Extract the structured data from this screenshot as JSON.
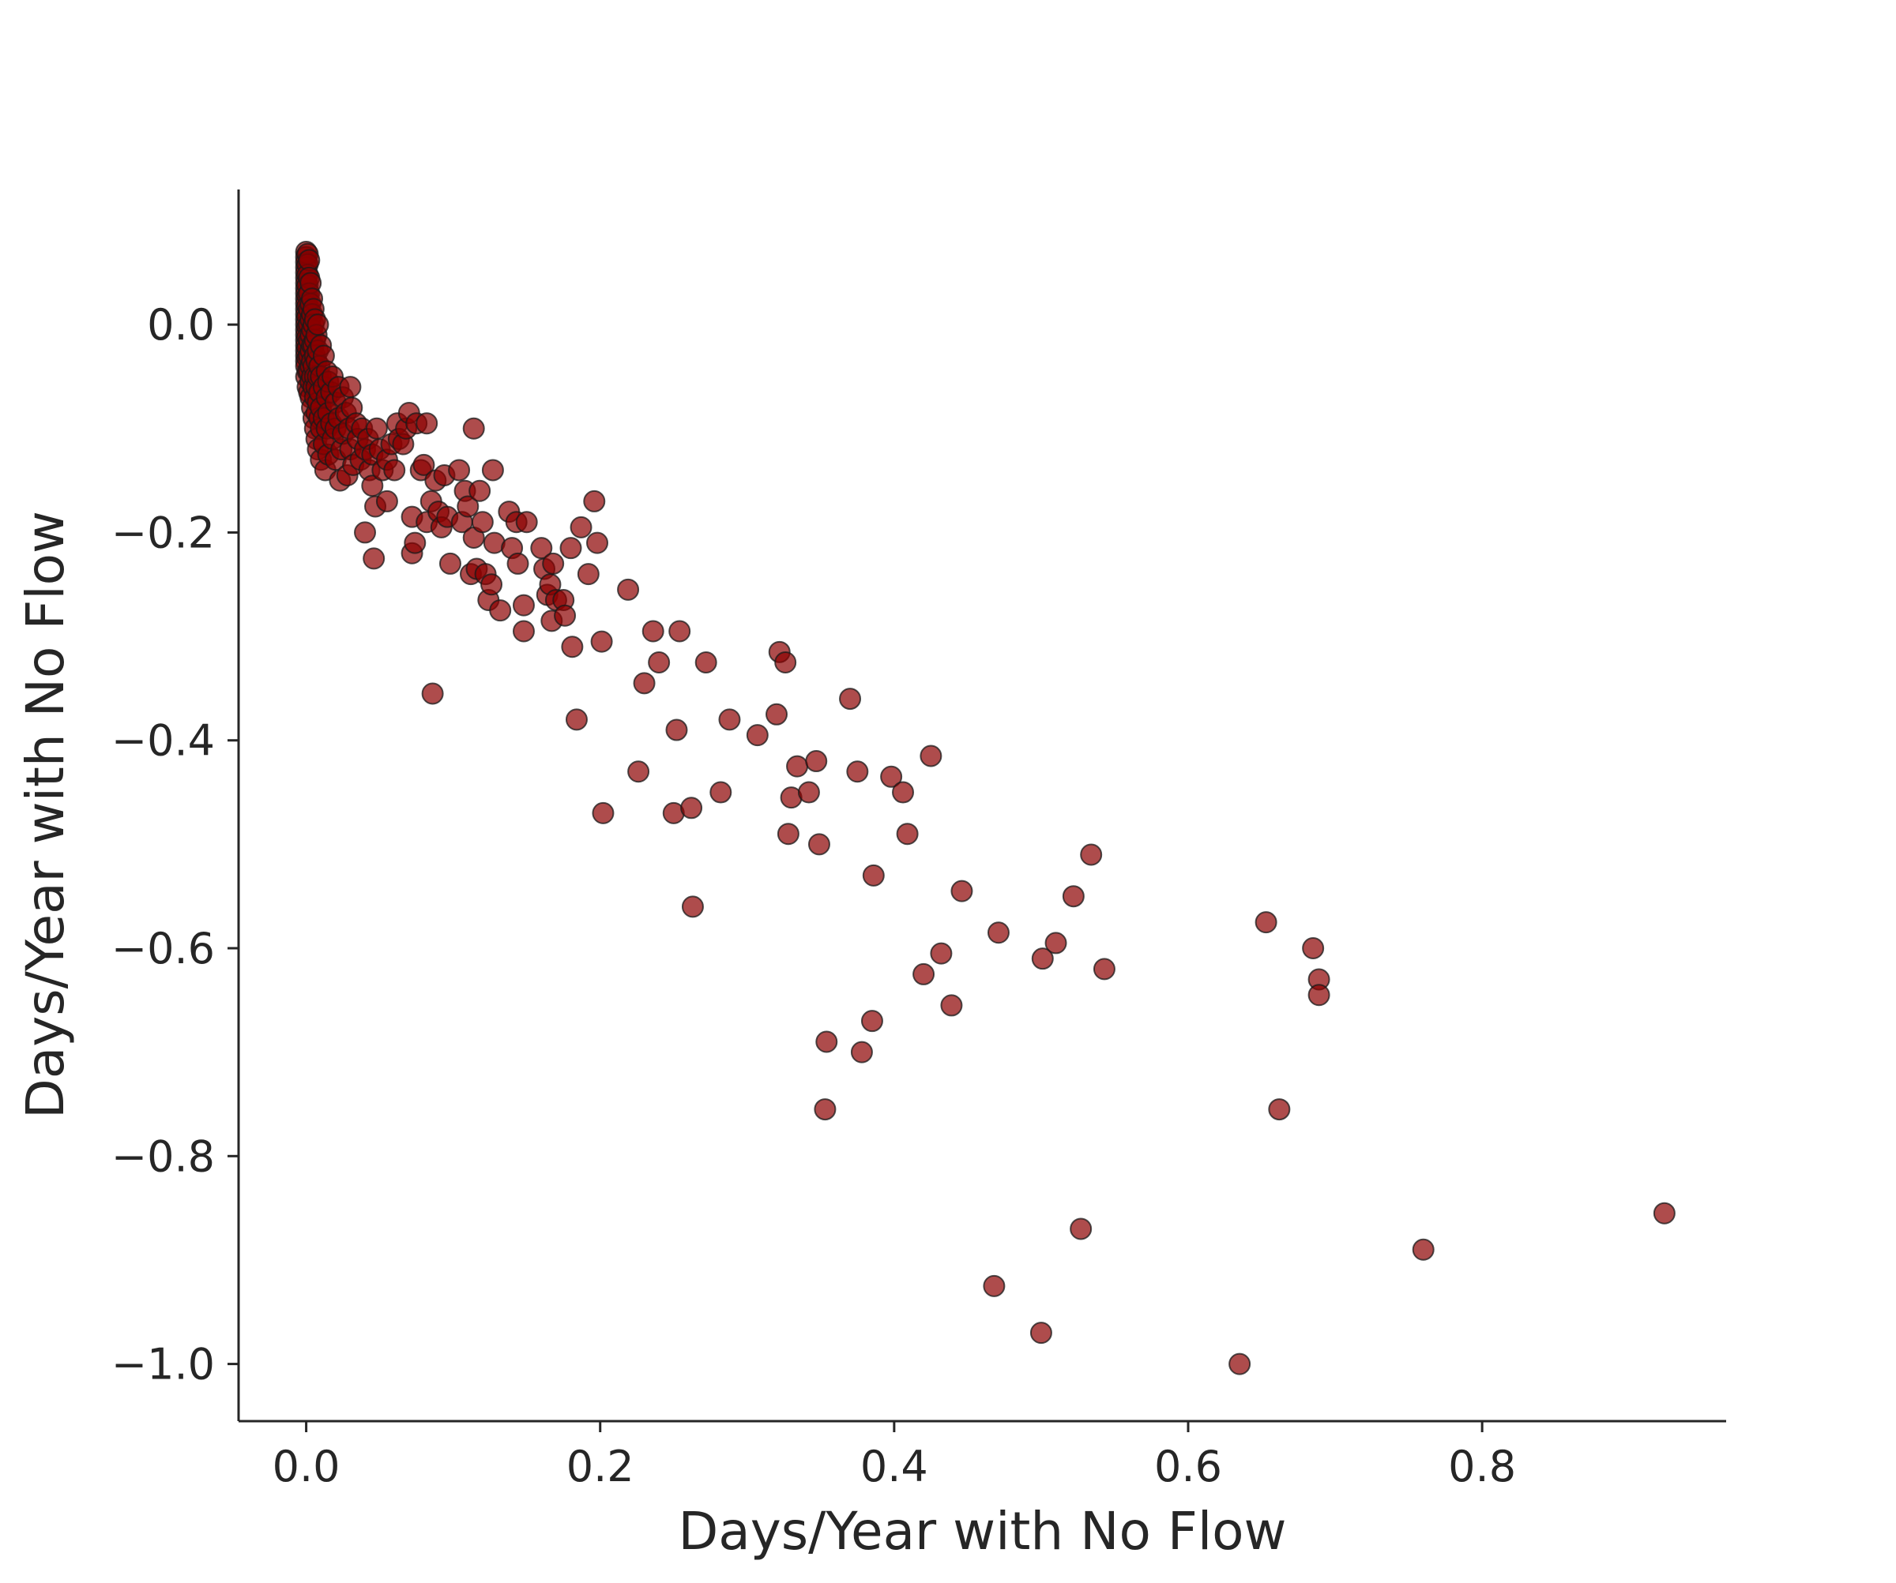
{
  "chart_data": {
    "type": "scatter",
    "title": "",
    "xlabel": "Days/Year with No Flow",
    "ylabel": "Days/Year with No Flow",
    "xlim": [
      -0.046,
      0.966
    ],
    "ylim": [
      -1.055,
      0.13
    ],
    "xticks": [
      0.0,
      0.2,
      0.4,
      0.6,
      0.8
    ],
    "yticks": [
      0.0,
      -0.2,
      -0.4,
      -0.6,
      -0.8,
      -1.0
    ],
    "xtick_labels": [
      "0.0",
      "0.2",
      "0.4",
      "0.6",
      "0.8"
    ],
    "ytick_labels": [
      "0.0",
      "−0.2",
      "−0.4",
      "−0.6",
      "−0.8",
      "−1.0"
    ],
    "grid": false,
    "legend": "none",
    "marker_color": "#8b0000",
    "marker_edge_color": "#1a1a1a",
    "marker_opacity": 0.7,
    "points": [
      [
        0.0,
        0.07
      ],
      [
        0.0,
        0.065
      ],
      [
        0.0,
        0.06
      ],
      [
        0.0,
        0.055
      ],
      [
        0.0,
        0.05
      ],
      [
        0.0,
        0.045
      ],
      [
        0.0,
        0.04
      ],
      [
        0.0,
        0.035
      ],
      [
        0.0,
        0.03
      ],
      [
        0.0,
        0.025
      ],
      [
        0.0,
        0.02
      ],
      [
        0.0,
        0.015
      ],
      [
        0.0,
        0.01
      ],
      [
        0.0,
        0.005
      ],
      [
        0.0,
        0.0
      ],
      [
        0.0,
        -0.005
      ],
      [
        0.0,
        -0.01
      ],
      [
        0.0,
        -0.015
      ],
      [
        0.0,
        -0.02
      ],
      [
        0.0,
        -0.025
      ],
      [
        0.0,
        -0.03
      ],
      [
        0.0,
        -0.035
      ],
      [
        0.0,
        -0.04
      ],
      [
        0.0,
        -0.05
      ],
      [
        0.001,
        0.068
      ],
      [
        0.001,
        0.058
      ],
      [
        0.001,
        0.048
      ],
      [
        0.001,
        0.038
      ],
      [
        0.001,
        0.028
      ],
      [
        0.001,
        0.018
      ],
      [
        0.001,
        0.008
      ],
      [
        0.001,
        -0.002
      ],
      [
        0.001,
        -0.012
      ],
      [
        0.001,
        -0.022
      ],
      [
        0.001,
        -0.032
      ],
      [
        0.001,
        -0.045
      ],
      [
        0.001,
        -0.06
      ],
      [
        0.002,
        0.062
      ],
      [
        0.002,
        0.045
      ],
      [
        0.002,
        0.03
      ],
      [
        0.002,
        0.015
      ],
      [
        0.002,
        0.0
      ],
      [
        0.002,
        -0.015
      ],
      [
        0.002,
        -0.03
      ],
      [
        0.002,
        -0.045
      ],
      [
        0.002,
        -0.065
      ],
      [
        0.003,
        0.04
      ],
      [
        0.003,
        0.02
      ],
      [
        0.003,
        0.005
      ],
      [
        0.003,
        -0.01
      ],
      [
        0.003,
        -0.025
      ],
      [
        0.003,
        -0.04
      ],
      [
        0.003,
        -0.055
      ],
      [
        0.003,
        -0.07
      ],
      [
        0.004,
        0.025
      ],
      [
        0.004,
        0.01
      ],
      [
        0.004,
        -0.005
      ],
      [
        0.004,
        -0.02
      ],
      [
        0.004,
        -0.035
      ],
      [
        0.004,
        -0.05
      ],
      [
        0.004,
        -0.08
      ],
      [
        0.005,
        0.015
      ],
      [
        0.005,
        0.0
      ],
      [
        0.005,
        -0.02
      ],
      [
        0.005,
        -0.04
      ],
      [
        0.005,
        -0.06
      ],
      [
        0.005,
        -0.09
      ],
      [
        0.006,
        0.005
      ],
      [
        0.006,
        -0.015
      ],
      [
        0.006,
        -0.03
      ],
      [
        0.006,
        -0.05
      ],
      [
        0.006,
        -0.07
      ],
      [
        0.006,
        -0.1
      ],
      [
        0.007,
        -0.01
      ],
      [
        0.007,
        -0.035
      ],
      [
        0.007,
        -0.06
      ],
      [
        0.007,
        -0.085
      ],
      [
        0.007,
        -0.11
      ],
      [
        0.008,
        0.0
      ],
      [
        0.008,
        -0.025
      ],
      [
        0.008,
        -0.05
      ],
      [
        0.008,
        -0.075
      ],
      [
        0.008,
        -0.12
      ],
      [
        0.009,
        -0.04
      ],
      [
        0.009,
        -0.065
      ],
      [
        0.009,
        -0.09
      ],
      [
        0.01,
        -0.02
      ],
      [
        0.01,
        -0.05
      ],
      [
        0.01,
        -0.08
      ],
      [
        0.01,
        -0.1
      ],
      [
        0.01,
        -0.13
      ],
      [
        0.012,
        -0.03
      ],
      [
        0.012,
        -0.06
      ],
      [
        0.012,
        -0.09
      ],
      [
        0.012,
        -0.115
      ],
      [
        0.013,
        -0.14
      ],
      [
        0.014,
        -0.045
      ],
      [
        0.014,
        -0.07
      ],
      [
        0.014,
        -0.1
      ],
      [
        0.015,
        -0.055
      ],
      [
        0.015,
        -0.085
      ],
      [
        0.015,
        -0.125
      ],
      [
        0.017,
        -0.065
      ],
      [
        0.017,
        -0.095
      ],
      [
        0.018,
        -0.05
      ],
      [
        0.018,
        -0.11
      ],
      [
        0.02,
        -0.075
      ],
      [
        0.02,
        -0.1
      ],
      [
        0.02,
        -0.13
      ],
      [
        0.022,
        -0.06
      ],
      [
        0.022,
        -0.09
      ],
      [
        0.023,
        -0.15
      ],
      [
        0.024,
        -0.12
      ],
      [
        0.025,
        -0.07
      ],
      [
        0.025,
        -0.105
      ],
      [
        0.027,
        -0.085
      ],
      [
        0.028,
        -0.145
      ],
      [
        0.029,
        -0.1
      ],
      [
        0.03,
        -0.06
      ],
      [
        0.03,
        -0.12
      ],
      [
        0.031,
        -0.08
      ],
      [
        0.032,
        -0.135
      ],
      [
        0.034,
        -0.095
      ],
      [
        0.035,
        -0.11
      ],
      [
        0.037,
        -0.13
      ],
      [
        0.038,
        -0.1
      ],
      [
        0.04,
        -0.12
      ],
      [
        0.04,
        -0.2
      ],
      [
        0.042,
        -0.11
      ],
      [
        0.043,
        -0.14
      ],
      [
        0.045,
        -0.125
      ],
      [
        0.045,
        -0.155
      ],
      [
        0.046,
        -0.225
      ],
      [
        0.047,
        -0.175
      ],
      [
        0.048,
        -0.1
      ],
      [
        0.05,
        -0.12
      ],
      [
        0.052,
        -0.14
      ],
      [
        0.055,
        -0.13
      ],
      [
        0.055,
        -0.17
      ],
      [
        0.058,
        -0.115
      ],
      [
        0.06,
        -0.14
      ],
      [
        0.062,
        -0.095
      ],
      [
        0.063,
        -0.11
      ],
      [
        0.066,
        -0.115
      ],
      [
        0.068,
        -0.1
      ],
      [
        0.07,
        -0.085
      ],
      [
        0.072,
        -0.22
      ],
      [
        0.072,
        -0.185
      ],
      [
        0.074,
        -0.21
      ],
      [
        0.075,
        -0.095
      ],
      [
        0.078,
        -0.14
      ],
      [
        0.08,
        -0.135
      ],
      [
        0.082,
        -0.19
      ],
      [
        0.082,
        -0.095
      ],
      [
        0.085,
        -0.17
      ],
      [
        0.086,
        -0.355
      ],
      [
        0.088,
        -0.15
      ],
      [
        0.09,
        -0.18
      ],
      [
        0.092,
        -0.195
      ],
      [
        0.094,
        -0.145
      ],
      [
        0.096,
        -0.185
      ],
      [
        0.098,
        -0.23
      ],
      [
        0.104,
        -0.14
      ],
      [
        0.106,
        -0.19
      ],
      [
        0.108,
        -0.16
      ],
      [
        0.11,
        -0.175
      ],
      [
        0.112,
        -0.24
      ],
      [
        0.114,
        -0.1
      ],
      [
        0.114,
        -0.205
      ],
      [
        0.116,
        -0.235
      ],
      [
        0.118,
        -0.16
      ],
      [
        0.12,
        -0.19
      ],
      [
        0.122,
        -0.24
      ],
      [
        0.124,
        -0.265
      ],
      [
        0.126,
        -0.25
      ],
      [
        0.127,
        -0.14
      ],
      [
        0.128,
        -0.21
      ],
      [
        0.132,
        -0.275
      ],
      [
        0.138,
        -0.18
      ],
      [
        0.14,
        -0.215
      ],
      [
        0.143,
        -0.19
      ],
      [
        0.144,
        -0.23
      ],
      [
        0.148,
        -0.295
      ],
      [
        0.148,
        -0.27
      ],
      [
        0.15,
        -0.19
      ],
      [
        0.16,
        -0.215
      ],
      [
        0.162,
        -0.235
      ],
      [
        0.164,
        -0.26
      ],
      [
        0.166,
        -0.25
      ],
      [
        0.167,
        -0.285
      ],
      [
        0.168,
        -0.23
      ],
      [
        0.17,
        -0.265
      ],
      [
        0.175,
        -0.265
      ],
      [
        0.176,
        -0.28
      ],
      [
        0.18,
        -0.215
      ],
      [
        0.181,
        -0.31
      ],
      [
        0.184,
        -0.38
      ],
      [
        0.187,
        -0.195
      ],
      [
        0.192,
        -0.24
      ],
      [
        0.196,
        -0.17
      ],
      [
        0.198,
        -0.21
      ],
      [
        0.201,
        -0.305
      ],
      [
        0.202,
        -0.47
      ],
      [
        0.219,
        -0.255
      ],
      [
        0.226,
        -0.43
      ],
      [
        0.23,
        -0.345
      ],
      [
        0.236,
        -0.295
      ],
      [
        0.24,
        -0.325
      ],
      [
        0.25,
        -0.47
      ],
      [
        0.252,
        -0.39
      ],
      [
        0.254,
        -0.295
      ],
      [
        0.262,
        -0.465
      ],
      [
        0.263,
        -0.56
      ],
      [
        0.272,
        -0.325
      ],
      [
        0.282,
        -0.45
      ],
      [
        0.288,
        -0.38
      ],
      [
        0.307,
        -0.395
      ],
      [
        0.32,
        -0.375
      ],
      [
        0.322,
        -0.315
      ],
      [
        0.326,
        -0.325
      ],
      [
        0.328,
        -0.49
      ],
      [
        0.33,
        -0.455
      ],
      [
        0.334,
        -0.425
      ],
      [
        0.342,
        -0.45
      ],
      [
        0.347,
        -0.42
      ],
      [
        0.349,
        -0.5
      ],
      [
        0.353,
        -0.755
      ],
      [
        0.354,
        -0.69
      ],
      [
        0.37,
        -0.36
      ],
      [
        0.375,
        -0.43
      ],
      [
        0.378,
        -0.7
      ],
      [
        0.385,
        -0.67
      ],
      [
        0.386,
        -0.53
      ],
      [
        0.398,
        -0.435
      ],
      [
        0.406,
        -0.45
      ],
      [
        0.409,
        -0.49
      ],
      [
        0.42,
        -0.625
      ],
      [
        0.425,
        -0.415
      ],
      [
        0.432,
        -0.605
      ],
      [
        0.439,
        -0.655
      ],
      [
        0.446,
        -0.545
      ],
      [
        0.468,
        -0.925
      ],
      [
        0.471,
        -0.585
      ],
      [
        0.5,
        -0.97
      ],
      [
        0.501,
        -0.61
      ],
      [
        0.51,
        -0.595
      ],
      [
        0.522,
        -0.55
      ],
      [
        0.527,
        -0.87
      ],
      [
        0.534,
        -0.51
      ],
      [
        0.543,
        -0.62
      ],
      [
        0.635,
        -1.0
      ],
      [
        0.653,
        -0.575
      ],
      [
        0.662,
        -0.755
      ],
      [
        0.685,
        -0.6
      ],
      [
        0.689,
        -0.63
      ],
      [
        0.689,
        -0.645
      ],
      [
        0.76,
        -0.89
      ],
      [
        0.924,
        -0.855
      ]
    ]
  }
}
